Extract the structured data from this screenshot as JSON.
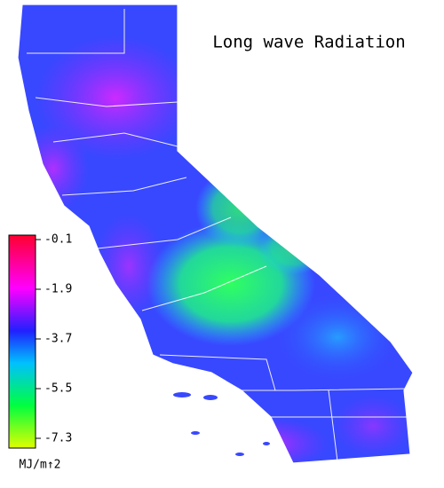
{
  "map": {
    "title": "Long wave Radiation",
    "legend": {
      "ticks": [
        -0.1,
        -1.9,
        -3.7,
        -5.5,
        -7.3
      ],
      "unit": "MJ/m↑2"
    }
  }
}
